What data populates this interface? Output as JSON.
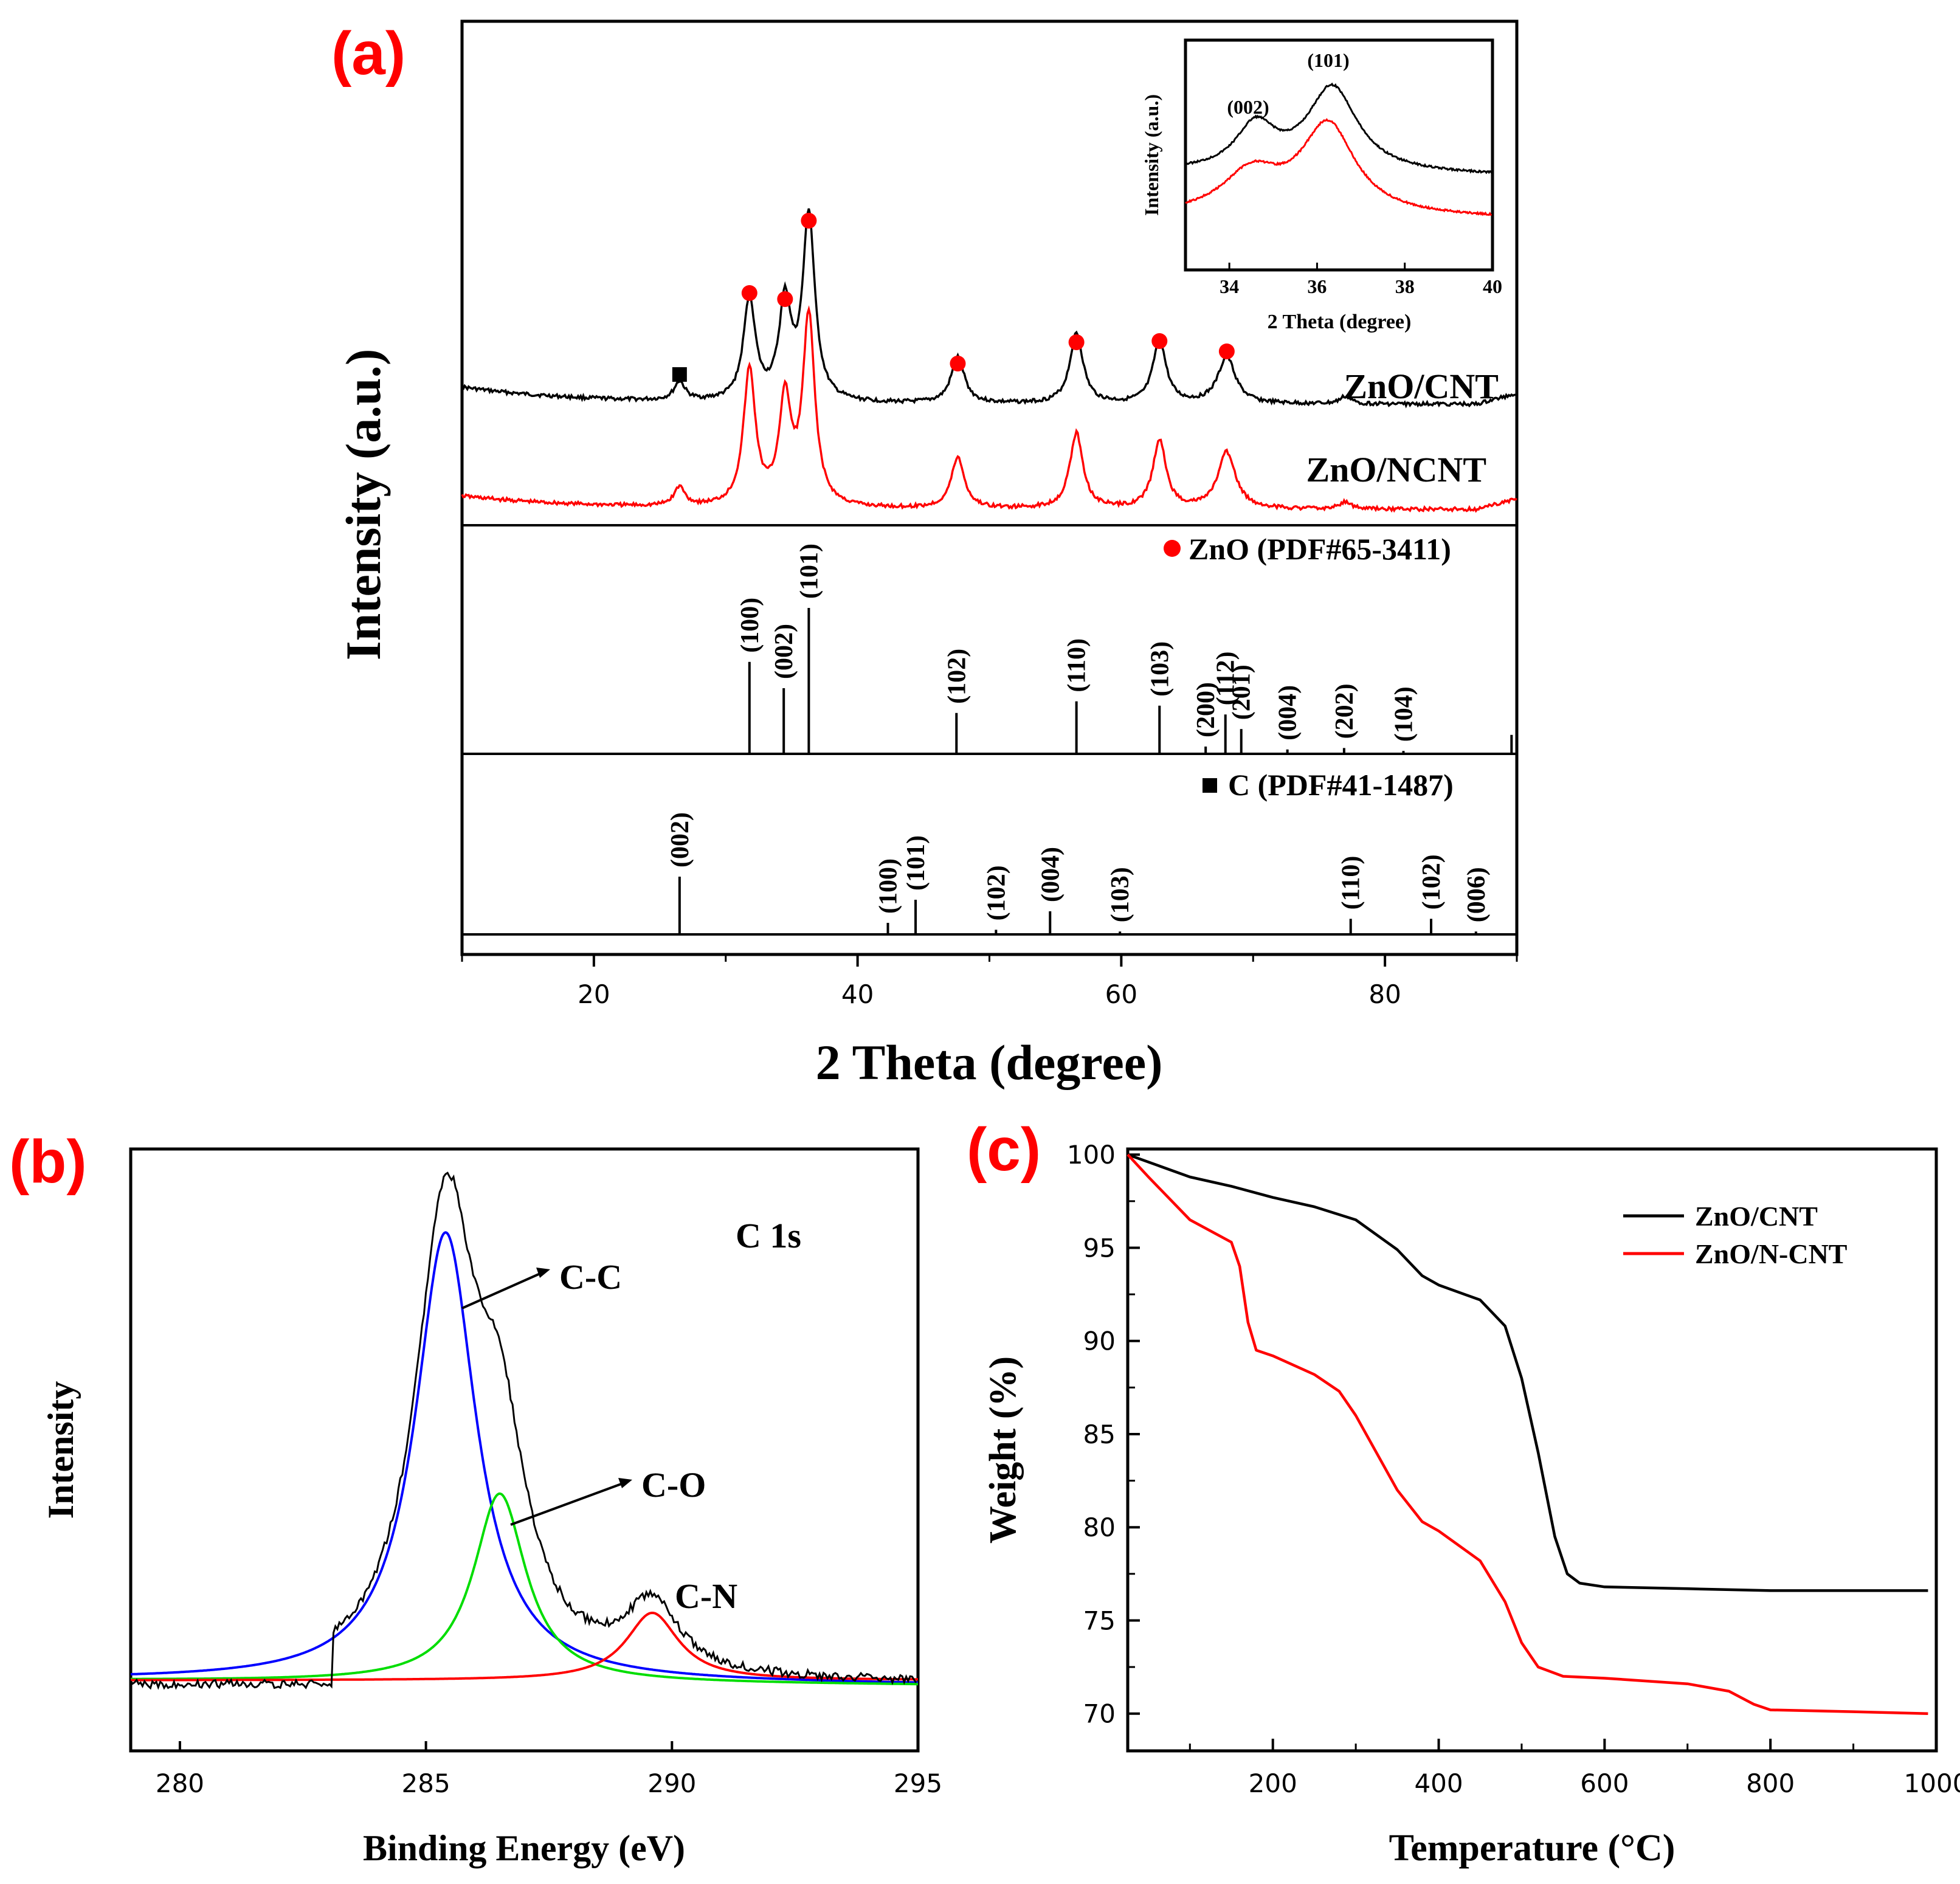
{
  "colors": {
    "black": "#000000",
    "red": "#ff0000",
    "blue": "#0000ff",
    "green": "#00dd00",
    "label": "#ff0000"
  },
  "chart_data": [
    {
      "id": "a",
      "panel_label": "(a)",
      "type": "line",
      "xlabel": "2 Theta (degree)",
      "ylabel": "Intensity (a.u.)",
      "xlim": [
        10,
        90
      ],
      "xticks": [
        20,
        40,
        60,
        80
      ],
      "series": [
        {
          "name": "ZnO/CNT",
          "color": "#000000",
          "peaks": [
            [
              26.5,
              0.1
            ],
            [
              31.8,
              0.55
            ],
            [
              34.5,
              0.52
            ],
            [
              36.3,
              1.0
            ],
            [
              47.6,
              0.25
            ],
            [
              56.6,
              0.38
            ],
            [
              62.9,
              0.34
            ],
            [
              68.0,
              0.25
            ],
            [
              77.0,
              0.04
            ]
          ]
        },
        {
          "name": "ZnO/NCNT",
          "color": "#ff0000",
          "peaks": [
            [
              26.5,
              0.1
            ],
            [
              31.8,
              0.72
            ],
            [
              34.5,
              0.55
            ],
            [
              36.3,
              1.0
            ],
            [
              47.6,
              0.27
            ],
            [
              56.6,
              0.4
            ],
            [
              62.9,
              0.36
            ],
            [
              68.0,
              0.3
            ],
            [
              77.0,
              0.04
            ]
          ]
        }
      ],
      "marker_peaks": {
        "zno_circles": [
          31.8,
          34.5,
          36.3,
          47.6,
          56.6,
          62.9,
          68.0
        ],
        "c_square": [
          26.5
        ]
      },
      "references": [
        {
          "name": "ZnO (PDF#65-3411)",
          "lines": [
            {
              "x": 31.8,
              "h": 0.63,
              "label": "(100)"
            },
            {
              "x": 34.4,
              "h": 0.45,
              "label": "(002)"
            },
            {
              "x": 36.3,
              "h": 1.0,
              "label": "(101)"
            },
            {
              "x": 47.5,
              "h": 0.28,
              "label": "(102)"
            },
            {
              "x": 56.6,
              "h": 0.36,
              "label": "(110)"
            },
            {
              "x": 62.9,
              "h": 0.33,
              "label": "(103)"
            },
            {
              "x": 66.4,
              "h": 0.05,
              "label": "(200)"
            },
            {
              "x": 67.9,
              "h": 0.27,
              "label": "(112)"
            },
            {
              "x": 69.1,
              "h": 0.17,
              "label": "(201)"
            },
            {
              "x": 72.6,
              "h": 0.03,
              "label": "(004)"
            },
            {
              "x": 76.9,
              "h": 0.04,
              "label": "(202)"
            },
            {
              "x": 81.4,
              "h": 0.02,
              "label": "(104)"
            },
            {
              "x": 89.6,
              "h": 0.13,
              "label": ""
            }
          ]
        },
        {
          "name": "C (PDF#41-1487)",
          "lines": [
            {
              "x": 26.5,
              "h": 1.0,
              "label": "(002)"
            },
            {
              "x": 42.3,
              "h": 0.2,
              "label": "(100)"
            },
            {
              "x": 44.4,
              "h": 0.6,
              "label": "(101)"
            },
            {
              "x": 50.5,
              "h": 0.08,
              "label": "(102)"
            },
            {
              "x": 54.6,
              "h": 0.4,
              "label": "(004)"
            },
            {
              "x": 59.9,
              "h": 0.05,
              "label": "(103)"
            },
            {
              "x": 77.4,
              "h": 0.27,
              "label": "(110)"
            },
            {
              "x": 83.5,
              "h": 0.27,
              "label": "(102)"
            },
            {
              "x": 86.9,
              "h": 0.05,
              "label": "(006)"
            }
          ]
        }
      ],
      "inset": {
        "xlabel": "2 Theta (degree)",
        "ylabel": "Intensity (a.u.)",
        "xlim": [
          33,
          40
        ],
        "xticks": [
          34,
          36,
          38,
          40
        ],
        "peak_labels": [
          "(002)",
          "(101)"
        ]
      }
    },
    {
      "id": "b",
      "panel_label": "(b)",
      "type": "line",
      "title": "C 1s",
      "xlabel": "Binding Energy (eV)",
      "ylabel": "Intensity",
      "xlim": [
        279,
        295
      ],
      "xticks": [
        280,
        285,
        290,
        295
      ],
      "components": [
        {
          "name": "C-C",
          "color": "#0000ff",
          "center": 285.4,
          "height": 1.0
        },
        {
          "name": "C-O",
          "color": "#00dd00",
          "center": 286.5,
          "height": 0.42
        },
        {
          "name": "C-N",
          "color": "#ff0000",
          "center": 289.6,
          "height": 0.15
        }
      ],
      "raw_color": "#000000"
    },
    {
      "id": "c",
      "panel_label": "(c)",
      "type": "line",
      "xlabel": "Temperature (°C)",
      "ylabel": "Weight (%)",
      "xlim": [
        25,
        1000
      ],
      "ylim": [
        68,
        100.3
      ],
      "xticks": [
        200,
        400,
        600,
        800,
        1000
      ],
      "yticks": [
        70,
        75,
        80,
        85,
        90,
        95,
        100
      ],
      "legend_position": "top-right",
      "series": [
        {
          "name": "ZnO/CNT",
          "color": "#000000",
          "x": [
            25,
            100,
            150,
            200,
            250,
            300,
            350,
            380,
            400,
            450,
            480,
            500,
            520,
            540,
            555,
            570,
            600,
            700,
            800,
            900,
            990
          ],
          "y": [
            100,
            98.8,
            98.3,
            97.7,
            97.2,
            96.5,
            94.9,
            93.5,
            93.0,
            92.2,
            90.8,
            88.0,
            84.0,
            79.5,
            77.5,
            77.0,
            76.8,
            76.7,
            76.6,
            76.6,
            76.6
          ]
        },
        {
          "name": "ZnO/N-CNT",
          "color": "#ff0000",
          "x": [
            25,
            50,
            100,
            150,
            160,
            170,
            180,
            200,
            250,
            280,
            300,
            350,
            380,
            400,
            450,
            480,
            500,
            520,
            550,
            600,
            700,
            750,
            780,
            800,
            900,
            990
          ],
          "y": [
            100,
            98.8,
            96.5,
            95.3,
            94.0,
            91.0,
            89.5,
            89.2,
            88.2,
            87.3,
            86.0,
            82.0,
            80.3,
            79.8,
            78.2,
            76.0,
            73.8,
            72.5,
            72.0,
            71.9,
            71.6,
            71.2,
            70.5,
            70.2,
            70.1,
            70.0
          ]
        }
      ]
    }
  ]
}
